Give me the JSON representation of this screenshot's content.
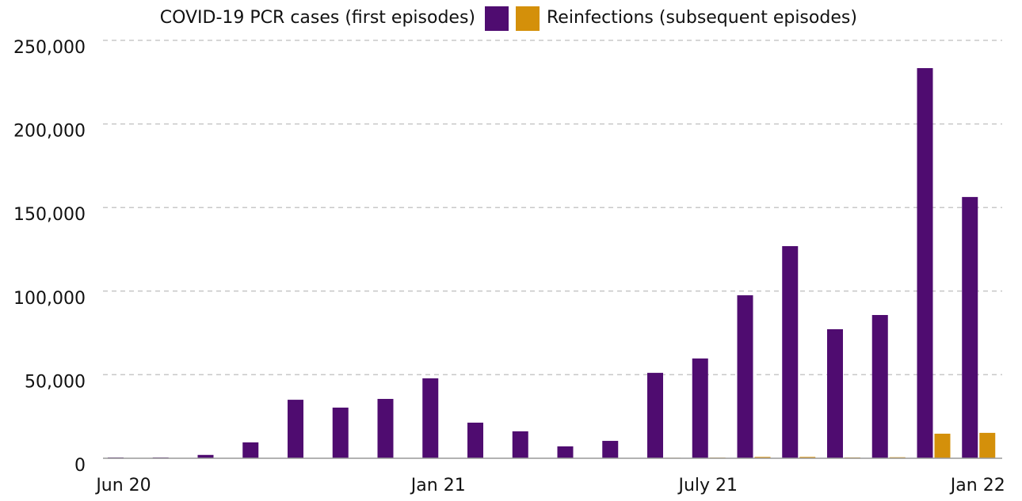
{
  "chart_data": {
    "type": "bar",
    "categories": [
      "Jun 20",
      null,
      null,
      null,
      null,
      null,
      null,
      "Jan 21",
      null,
      null,
      null,
      null,
      null,
      "July 21",
      null,
      null,
      null,
      null,
      null,
      "Jan 22"
    ],
    "series": [
      {
        "name": "COVID-19 PCR cases (first episodes)",
        "color": "#4f0c70",
        "values": [
          500,
          500,
          2000,
          9500,
          35000,
          30300,
          35500,
          47800,
          21300,
          16100,
          7100,
          10400,
          51100,
          59700,
          97500,
          126900,
          77200,
          85700,
          233400,
          156300
        ]
      },
      {
        "name": "Reinfections (subsequent episodes)",
        "color": "#d4900a",
        "values": [
          0,
          0,
          0,
          0,
          100,
          100,
          100,
          200,
          200,
          100,
          100,
          100,
          300,
          400,
          800,
          800,
          500,
          600,
          14700,
          15200
        ]
      }
    ],
    "ylim": [
      0,
      250000
    ],
    "yticks": [
      0,
      {
        "value": 50000,
        "label": "50,000"
      },
      {
        "value": 100000,
        "label": "100,000"
      },
      {
        "value": 150000,
        "label": "150,000"
      },
      {
        "value": 200000,
        "label": "200,000"
      },
      {
        "value": 250000,
        "label": "250,000"
      }
    ],
    "grid": true,
    "legend": "top"
  }
}
